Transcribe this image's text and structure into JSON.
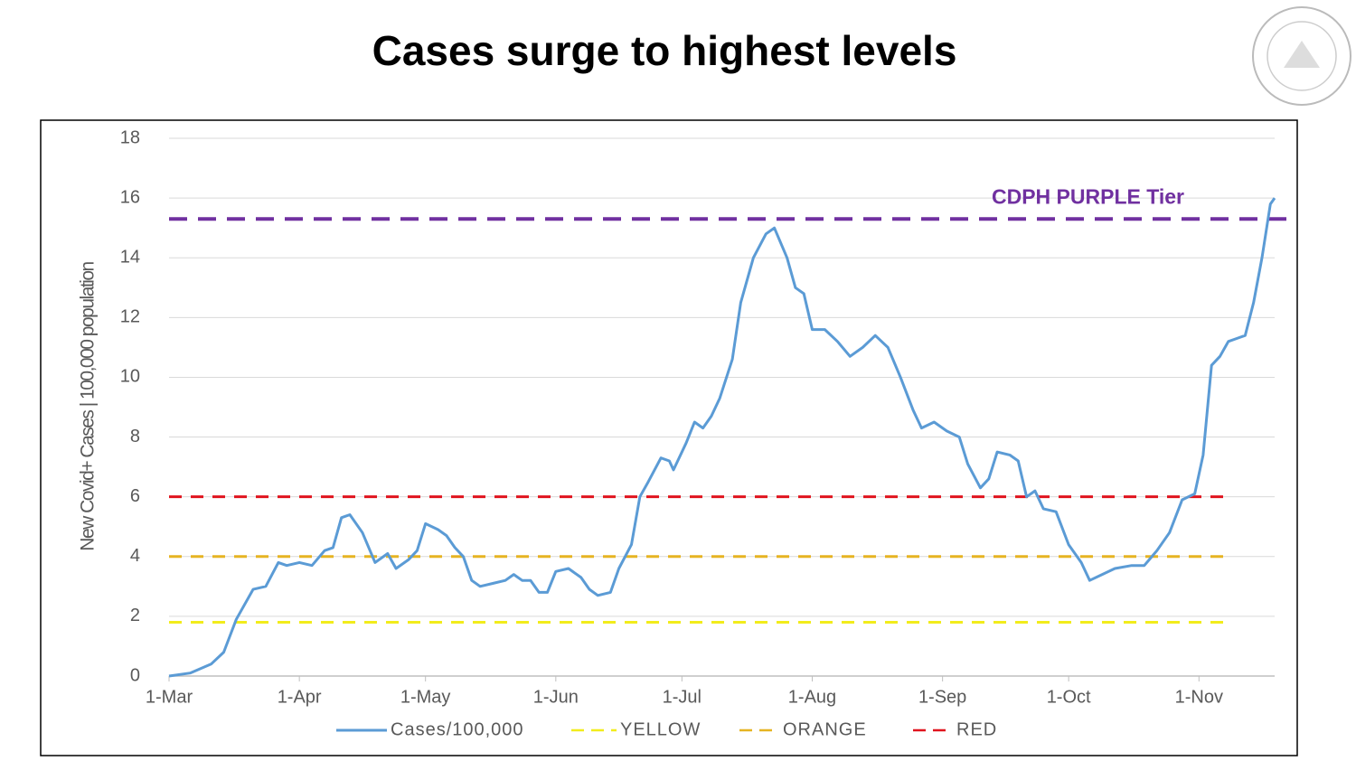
{
  "chart_data": {
    "type": "line",
    "title": "Cases surge to highest levels",
    "ylabel": "New Covid+ Cases | 100,000 population",
    "xlim": [
      0,
      263
    ],
    "xticks": [
      {
        "value": 0,
        "label": "1-Mar"
      },
      {
        "value": 31,
        "label": "1-Apr"
      },
      {
        "value": 61,
        "label": "1-May"
      },
      {
        "value": 92,
        "label": "1-Jun"
      },
      {
        "value": 122,
        "label": "1-Jul"
      },
      {
        "value": 153,
        "label": "1-Aug"
      },
      {
        "value": 184,
        "label": "1-Sep"
      },
      {
        "value": 214,
        "label": "1-Oct"
      },
      {
        "value": 245,
        "label": "1-Nov"
      }
    ],
    "ylim": [
      0,
      18
    ],
    "yticks": [
      0,
      2,
      4,
      6,
      8,
      10,
      12,
      14,
      16,
      18
    ],
    "grid": true,
    "legend": "bottom",
    "series": [
      {
        "name": "Cases/100,000",
        "color": "#5b9bd5",
        "x": [
          0,
          5,
          10,
          13,
          16,
          20,
          23,
          26,
          28,
          31,
          34,
          37,
          39,
          41,
          43,
          46,
          49,
          50,
          52,
          54,
          57,
          59,
          61,
          64,
          66,
          68,
          70,
          72,
          74,
          77,
          80,
          82,
          84,
          86,
          88,
          90,
          92,
          95,
          98,
          100,
          102,
          105,
          107,
          110,
          112,
          114,
          117,
          119,
          120,
          123,
          125,
          127,
          129,
          131,
          134,
          136,
          139,
          142,
          144,
          147,
          149,
          151,
          153,
          156,
          159,
          162,
          165,
          168,
          171,
          174,
          177,
          179,
          182,
          185,
          188,
          190,
          193,
          195,
          197,
          200,
          202,
          204,
          206,
          208,
          211,
          214,
          217,
          219,
          222,
          225,
          229,
          232,
          235,
          238,
          241,
          244,
          246,
          248,
          250,
          252,
          254,
          256,
          258,
          260,
          262,
          263
        ],
        "values": [
          0,
          0.1,
          0.4,
          0.8,
          1.9,
          2.9,
          3.0,
          3.8,
          3.7,
          3.8,
          3.7,
          4.2,
          4.3,
          5.3,
          5.4,
          4.8,
          3.8,
          3.9,
          4.1,
          3.6,
          3.9,
          4.2,
          5.1,
          4.9,
          4.7,
          4.3,
          4.0,
          3.2,
          3.0,
          3.1,
          3.2,
          3.4,
          3.2,
          3.2,
          2.8,
          2.8,
          3.5,
          3.6,
          3.3,
          2.9,
          2.7,
          2.8,
          3.6,
          4.4,
          6.0,
          6.5,
          7.3,
          7.2,
          6.9,
          7.8,
          8.5,
          8.3,
          8.7,
          9.3,
          10.6,
          12.5,
          14.0,
          14.8,
          15.0,
          14.0,
          13.0,
          12.8,
          11.6,
          11.6,
          11.2,
          10.7,
          11.0,
          11.4,
          11.0,
          10.0,
          8.9,
          8.3,
          8.5,
          8.2,
          8.0,
          7.1,
          6.3,
          6.6,
          7.5,
          7.4,
          7.2,
          6.0,
          6.2,
          5.6,
          5.5,
          4.4,
          3.8,
          3.2,
          3.4,
          3.6,
          3.7,
          3.7,
          4.2,
          4.8,
          5.9,
          6.1,
          7.4,
          10.4,
          10.7,
          11.2,
          11.3,
          11.4,
          12.5,
          14.0,
          15.8,
          16.0
        ]
      },
      {
        "name": "YELLOW",
        "color": "#f2ec1c",
        "value": 1.8
      },
      {
        "name": "ORANGE",
        "color": "#e6b422",
        "value": 4
      },
      {
        "name": "RED",
        "color": "#e0141e",
        "value": 6
      }
    ],
    "annotation": {
      "text": "CDPH PURPLE Tier",
      "value": 15.3,
      "color": "#7030a0"
    }
  }
}
